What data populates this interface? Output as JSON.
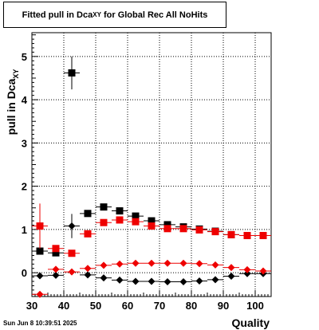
{
  "title": {
    "prefix": "Fitted pull in Dca",
    "subscript": "XY",
    "suffix": " for Global Rec All NoHits"
  },
  "footer_stamp": "Sun Jun  8 10:39:51 2025",
  "colors": {
    "black_series": "#000000",
    "red_series": "#ee0000"
  },
  "chart_data": {
    "type": "scatter",
    "title": "Fitted pull in Dca XY for Global Rec All NoHits",
    "xlabel": "Quality",
    "ylabel": "pull in Dca",
    "ylabel_subscript": "XY",
    "xlim": [
      30,
      105
    ],
    "ylim": [
      -0.55,
      5.55
    ],
    "xticks": [
      30,
      40,
      50,
      60,
      70,
      80,
      90,
      100
    ],
    "yticks": [
      0,
      1,
      2,
      3,
      4,
      5
    ],
    "grid": true,
    "legend": "none",
    "series": [
      {
        "marker": "square",
        "color": "#000000",
        "points": [
          {
            "x": 32.5,
            "y": 0.5,
            "yerr": 0.03
          },
          {
            "x": 37.5,
            "y": 0.46,
            "yerr": 0.03
          },
          {
            "x": 42.5,
            "y": 4.62,
            "yerr": 0.38
          },
          {
            "x": 47.5,
            "y": 1.37,
            "yerr": 0.03
          },
          {
            "x": 52.5,
            "y": 1.52,
            "yerr": 0.03
          },
          {
            "x": 57.5,
            "y": 1.43,
            "yerr": 0.03
          },
          {
            "x": 62.5,
            "y": 1.31,
            "yerr": 0.03
          },
          {
            "x": 67.5,
            "y": 1.2,
            "yerr": 0.03
          },
          {
            "x": 72.5,
            "y": 1.11,
            "yerr": 0.03
          },
          {
            "x": 77.5,
            "y": 1.06,
            "yerr": 0.03
          },
          {
            "x": 82.5,
            "y": 1.01,
            "yerr": 0.03
          },
          {
            "x": 87.5,
            "y": 0.96,
            "yerr": 0.03
          },
          {
            "x": 92.5,
            "y": 0.88,
            "yerr": 0.03
          },
          {
            "x": 97.5,
            "y": 0.86,
            "yerr": 0.03
          },
          {
            "x": 102.5,
            "y": 0.86,
            "yerr": 0.03
          }
        ]
      },
      {
        "marker": "square",
        "color": "#ee0000",
        "points": [
          {
            "x": 32.5,
            "y": 1.08,
            "yerr": 0.52
          },
          {
            "x": 37.5,
            "y": 0.56,
            "yerr": 0.04
          },
          {
            "x": 42.5,
            "y": 0.45,
            "yerr": 0.04
          },
          {
            "x": 47.5,
            "y": 0.9,
            "yerr": 0.03
          },
          {
            "x": 52.5,
            "y": 1.16,
            "yerr": 0.03
          },
          {
            "x": 57.5,
            "y": 1.22,
            "yerr": 0.03
          },
          {
            "x": 62.5,
            "y": 1.18,
            "yerr": 0.03
          },
          {
            "x": 67.5,
            "y": 1.08,
            "yerr": 0.03
          },
          {
            "x": 72.5,
            "y": 1.02,
            "yerr": 0.03
          },
          {
            "x": 77.5,
            "y": 1.02,
            "yerr": 0.03
          },
          {
            "x": 82.5,
            "y": 0.99,
            "yerr": 0.03
          },
          {
            "x": 87.5,
            "y": 0.95,
            "yerr": 0.03
          },
          {
            "x": 92.5,
            "y": 0.88,
            "yerr": 0.03
          },
          {
            "x": 97.5,
            "y": 0.86,
            "yerr": 0.03
          },
          {
            "x": 102.5,
            "y": 0.86,
            "yerr": 0.03
          }
        ]
      },
      {
        "marker": "diamond",
        "color": "#000000",
        "points": [
          {
            "x": 32.5,
            "y": -0.07,
            "yerr": 0.03
          },
          {
            "x": 37.5,
            "y": -0.06,
            "yerr": 0.03
          },
          {
            "x": 42.5,
            "y": 1.08,
            "yerr": 0.28
          },
          {
            "x": 47.5,
            "y": -0.05,
            "yerr": 0.02
          },
          {
            "x": 52.5,
            "y": -0.12,
            "yerr": 0.02
          },
          {
            "x": 57.5,
            "y": -0.17,
            "yerr": 0.02
          },
          {
            "x": 62.5,
            "y": -0.2,
            "yerr": 0.02
          },
          {
            "x": 67.5,
            "y": -0.2,
            "yerr": 0.02
          },
          {
            "x": 72.5,
            "y": -0.21,
            "yerr": 0.02
          },
          {
            "x": 77.5,
            "y": -0.21,
            "yerr": 0.02
          },
          {
            "x": 82.5,
            "y": -0.19,
            "yerr": 0.02
          },
          {
            "x": 87.5,
            "y": -0.16,
            "yerr": 0.02
          },
          {
            "x": 92.5,
            "y": -0.08,
            "yerr": 0.02
          },
          {
            "x": 97.5,
            "y": -0.02,
            "yerr": 0.02
          },
          {
            "x": 102.5,
            "y": -0.02,
            "yerr": 0.02
          }
        ]
      },
      {
        "marker": "diamond",
        "color": "#ee0000",
        "points": [
          {
            "x": 32.5,
            "y": -0.5,
            "yerr": 0.05
          },
          {
            "x": 37.5,
            "y": 0.08,
            "yerr": 0.03
          },
          {
            "x": 42.5,
            "y": 0.02,
            "yerr": 0.03
          },
          {
            "x": 47.5,
            "y": 0.1,
            "yerr": 0.02
          },
          {
            "x": 52.5,
            "y": 0.17,
            "yerr": 0.02
          },
          {
            "x": 57.5,
            "y": 0.2,
            "yerr": 0.02
          },
          {
            "x": 62.5,
            "y": 0.22,
            "yerr": 0.02
          },
          {
            "x": 67.5,
            "y": 0.22,
            "yerr": 0.02
          },
          {
            "x": 72.5,
            "y": 0.22,
            "yerr": 0.02
          },
          {
            "x": 77.5,
            "y": 0.22,
            "yerr": 0.02
          },
          {
            "x": 82.5,
            "y": 0.21,
            "yerr": 0.02
          },
          {
            "x": 87.5,
            "y": 0.18,
            "yerr": 0.02
          },
          {
            "x": 92.5,
            "y": 0.12,
            "yerr": 0.02
          },
          {
            "x": 97.5,
            "y": 0.07,
            "yerr": 0.02
          },
          {
            "x": 102.5,
            "y": 0.04,
            "yerr": 0.02
          }
        ]
      }
    ]
  }
}
